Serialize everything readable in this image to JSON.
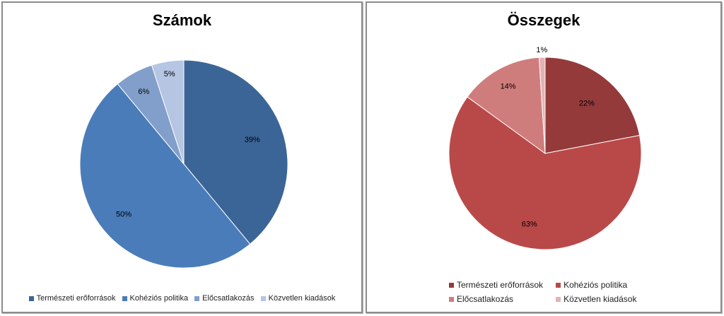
{
  "chart_data": [
    {
      "type": "pie",
      "title": "Számok",
      "categories": [
        "Természeti erőforrások",
        "Kohéziós politika",
        "Előcsatlakozás",
        "Közvetlen kiadások"
      ],
      "values": [
        39,
        50,
        6,
        5
      ],
      "labels": [
        "39%",
        "50%",
        "6%",
        "5%"
      ],
      "colors": [
        "#3b6596",
        "#4a7cb9",
        "#829fcb",
        "#b5c5e2"
      ],
      "legend_position": "bottom"
    },
    {
      "type": "pie",
      "title": "Összegek",
      "categories": [
        "Természeti erőforrások",
        "Kohéziós politika",
        "Előcsatlakozás",
        "Közvetlen kiadások"
      ],
      "values": [
        22,
        63,
        14,
        1
      ],
      "labels": [
        "22%",
        "63%",
        "14%",
        "1%"
      ],
      "colors": [
        "#953a3a",
        "#b94948",
        "#cf7d7c",
        "#e3b3b3"
      ],
      "legend_position": "bottom"
    }
  ]
}
